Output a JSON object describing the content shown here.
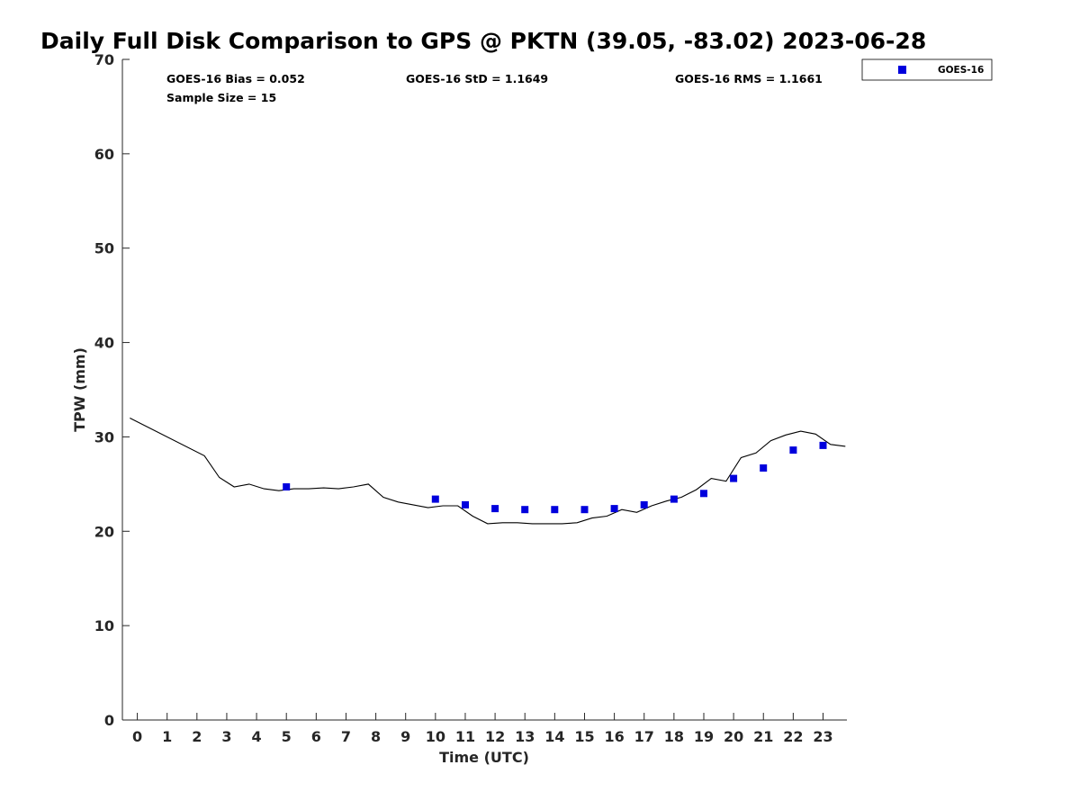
{
  "chart_data": {
    "type": "scatter",
    "title": "Daily Full Disk Comparison to GPS @ PKTN (39.05, -83.02) 2023-06-28",
    "xlabel": "Time (UTC)",
    "ylabel": "TPW (mm)",
    "xlim": [
      -0.5,
      23.8
    ],
    "ylim": [
      0,
      70
    ],
    "x_ticks": [
      0,
      1,
      2,
      3,
      4,
      5,
      6,
      7,
      8,
      9,
      10,
      11,
      12,
      13,
      14,
      15,
      16,
      17,
      18,
      19,
      20,
      21,
      22,
      23
    ],
    "x_tick_labels": [
      "0",
      "1",
      "2",
      "3",
      "4",
      "5",
      "6",
      "7",
      "8",
      "9",
      "10",
      "11",
      "12",
      "13",
      "14",
      "15",
      "16",
      "17",
      "18",
      "19",
      "20",
      "21",
      "22",
      "23"
    ],
    "y_ticks": [
      0,
      10,
      20,
      30,
      40,
      50,
      60,
      70
    ],
    "y_tick_labels": [
      "0",
      "10",
      "20",
      "30",
      "40",
      "50",
      "60",
      "70"
    ],
    "grid": false,
    "legend_position": "outside-top-right",
    "stats": {
      "bias": "GOES-16 Bias = 0.052",
      "sample_size": "Sample Size = 15",
      "std": "GOES-16 StD = 1.1649",
      "rms": "GOES-16 RMS = 1.1661"
    },
    "series": [
      {
        "name": "GOES-16",
        "kind": "markers",
        "marker": "square",
        "color": "#0000dd",
        "x": [
          5,
          10,
          11,
          12,
          13,
          14,
          15,
          16,
          17,
          18,
          19,
          20,
          21,
          22,
          23
        ],
        "y": [
          24.7,
          23.4,
          22.8,
          22.4,
          22.3,
          22.3,
          22.3,
          22.4,
          22.8,
          23.4,
          24.0,
          25.6,
          26.7,
          28.6,
          29.1
        ]
      },
      {
        "kind": "line",
        "color": "#000000",
        "x": [
          -0.25,
          2.25,
          2.75,
          3.25,
          3.75,
          4.25,
          4.75,
          5.25,
          5.75,
          6.25,
          6.75,
          7.25,
          7.75,
          8.25,
          8.75,
          9.25,
          9.75,
          10.25,
          10.75,
          11.25,
          11.75,
          12.25,
          12.75,
          13.25,
          13.75,
          14.25,
          14.75,
          15.25,
          15.75,
          16.25,
          16.75,
          17.25,
          17.75,
          18.25,
          18.75,
          19.25,
          19.75,
          20.25,
          20.75,
          21.25,
          21.75,
          22.25,
          22.75,
          23.25,
          23.75
        ],
        "y": [
          32.0,
          28.0,
          25.7,
          24.7,
          25.0,
          24.5,
          24.3,
          24.5,
          24.5,
          24.6,
          24.5,
          24.7,
          25.0,
          23.6,
          23.1,
          22.8,
          22.5,
          22.7,
          22.7,
          21.6,
          20.8,
          20.9,
          20.9,
          20.8,
          20.8,
          20.8,
          20.9,
          21.4,
          21.6,
          22.3,
          22.0,
          22.7,
          23.2,
          23.6,
          24.4,
          25.6,
          25.3,
          27.8,
          28.3,
          29.6,
          30.2,
          30.6,
          30.3,
          29.2,
          29.0
        ]
      }
    ]
  }
}
